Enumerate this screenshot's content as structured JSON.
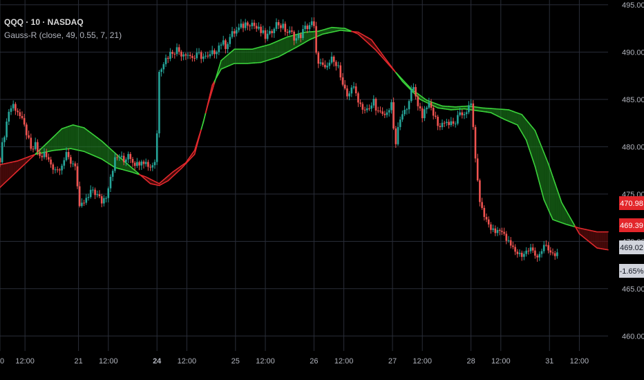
{
  "header": {
    "symbol": "QQQ · 10 · NASDAQ",
    "indicator": "Gauss-R (close, 49, 0.55, 7, 21)"
  },
  "colors": {
    "background": "#000000",
    "grid": "#2a2e39",
    "up_candle": "#26a69a",
    "down_candle": "#ef5350",
    "bull_band": "#1f8f1f",
    "bull_line": "#3ad13a",
    "bear_band": "#7a1010",
    "bear_line": "#e0282c",
    "tag_red": "#e3262b",
    "tag_gray": "#d1d4dc"
  },
  "price_tags": [
    {
      "label": "470.98",
      "value": 470.98,
      "color": "#e3262b",
      "text": "light"
    },
    {
      "label": "469.39",
      "value": 469.39,
      "color": "#e3262b",
      "text": "light"
    },
    {
      "label": "469.02",
      "value": 469.02,
      "color": "#d1d4dc",
      "text": "dark"
    },
    {
      "label": "-1.65%",
      "value": 467.2,
      "color": "#d1d4dc",
      "text": "dark"
    }
  ],
  "chart_data": {
    "type": "candlestick",
    "ylim": [
      459,
      495.5
    ],
    "y_ticks": [
      {
        "label": "495.00",
        "value": 495
      },
      {
        "label": "490.00",
        "value": 490
      },
      {
        "label": "485.00",
        "value": 485
      },
      {
        "label": "480.00",
        "value": 480
      },
      {
        "label": "475.00",
        "value": 475
      },
      {
        "label": "470.00",
        "value": 470
      },
      {
        "label": "465.00",
        "value": 465
      },
      {
        "label": "460.00",
        "value": 460
      }
    ],
    "x_ticks": [
      {
        "label": "20",
        "bar": 0,
        "bold": false
      },
      {
        "label": "12:00",
        "bar": 11.3,
        "bold": false
      },
      {
        "label": "21",
        "bar": 35.5,
        "bold": false
      },
      {
        "label": "12:00",
        "bar": 49,
        "bold": false
      },
      {
        "label": "24",
        "bar": 71,
        "bold": true
      },
      {
        "label": "12:00",
        "bar": 84.5,
        "bold": false
      },
      {
        "label": "25",
        "bar": 106.5,
        "bold": false
      },
      {
        "label": "12:00",
        "bar": 120,
        "bold": false
      },
      {
        "label": "26",
        "bar": 142,
        "bold": false
      },
      {
        "label": "12:00",
        "bar": 155.5,
        "bold": false
      },
      {
        "label": "27",
        "bar": 177.5,
        "bold": false
      },
      {
        "label": "12:00",
        "bar": 191,
        "bold": false
      },
      {
        "label": "28",
        "bar": 213,
        "bold": false
      },
      {
        "label": "12:00",
        "bar": 226.5,
        "bold": false
      },
      {
        "label": "31",
        "bar": 248.5,
        "bold": false
      },
      {
        "label": "12:00",
        "bar": 262,
        "bold": false
      }
    ],
    "x_range": [
      0,
      275
    ],
    "series": [
      {
        "name": "",
        "type": "candles",
        "anchors": [
          [
            0,
            478.8
          ],
          [
            2,
            481.4
          ],
          [
            4,
            483.8
          ],
          [
            6,
            484.4
          ],
          [
            8,
            483.8
          ],
          [
            10,
            482.6
          ],
          [
            12,
            481.5
          ],
          [
            14,
            479.5
          ],
          [
            16,
            480.1
          ],
          [
            18,
            478.9
          ],
          [
            20,
            479.2
          ],
          [
            22,
            478.5
          ],
          [
            24,
            477.9
          ],
          [
            26,
            477.6
          ],
          [
            28,
            478.3
          ],
          [
            30,
            479.0
          ],
          [
            32,
            478.4
          ],
          [
            34,
            478.2
          ],
          [
            36,
            473.3
          ],
          [
            38,
            474.1
          ],
          [
            40,
            474.6
          ],
          [
            42,
            475.5
          ],
          [
            44,
            474.8
          ],
          [
            46,
            474.2
          ],
          [
            48,
            474.9
          ],
          [
            50,
            477.0
          ],
          [
            52,
            478.6
          ],
          [
            54,
            479.0
          ],
          [
            56,
            478.4
          ],
          [
            58,
            479.4
          ],
          [
            60,
            478.6
          ],
          [
            62,
            478.1
          ],
          [
            64,
            478.8
          ],
          [
            66,
            478.3
          ],
          [
            68,
            477.9
          ],
          [
            70,
            478.5
          ],
          [
            71,
            481.4
          ],
          [
            72,
            488.2
          ],
          [
            74,
            489.0
          ],
          [
            76,
            489.6
          ],
          [
            78,
            490.1
          ],
          [
            80,
            490.3
          ],
          [
            82,
            489.9
          ],
          [
            84,
            490.0
          ],
          [
            86,
            489.6
          ],
          [
            88,
            489.4
          ],
          [
            90,
            489.7
          ],
          [
            92,
            489.5
          ],
          [
            94,
            489.3
          ],
          [
            96,
            489.8
          ],
          [
            98,
            490.4
          ],
          [
            100,
            491.0
          ],
          [
            102,
            490.7
          ],
          [
            104,
            491.6
          ],
          [
            106,
            492.1
          ],
          [
            108,
            492.4
          ],
          [
            110,
            492.8
          ],
          [
            112,
            493.2
          ],
          [
            114,
            493.1
          ],
          [
            116,
            492.5
          ],
          [
            118,
            492.1
          ],
          [
            120,
            491.6
          ],
          [
            122,
            491.8
          ],
          [
            124,
            492.9
          ],
          [
            126,
            493.0
          ],
          [
            128,
            492.6
          ],
          [
            130,
            492.1
          ],
          [
            132,
            491.9
          ],
          [
            134,
            491.4
          ],
          [
            136,
            491.8
          ],
          [
            138,
            492.5
          ],
          [
            140,
            492.9
          ],
          [
            141,
            493.0
          ],
          [
            142,
            492.5
          ],
          [
            143,
            489.6
          ],
          [
            145,
            488.7
          ],
          [
            147,
            488.0
          ],
          [
            149,
            488.9
          ],
          [
            151,
            489.4
          ],
          [
            153,
            488.4
          ],
          [
            155,
            486.2
          ],
          [
            157,
            485.3
          ],
          [
            159,
            486.4
          ],
          [
            161,
            485.6
          ],
          [
            163,
            484.5
          ],
          [
            165,
            483.9
          ],
          [
            167,
            483.8
          ],
          [
            169,
            484.9
          ],
          [
            171,
            483.6
          ],
          [
            173,
            483.2
          ],
          [
            175,
            483.5
          ],
          [
            177,
            484.8
          ],
          [
            178,
            481.5
          ],
          [
            179,
            480.4
          ],
          [
            181,
            482.9
          ],
          [
            183,
            483.6
          ],
          [
            185,
            485.2
          ],
          [
            187,
            486.1
          ],
          [
            189,
            484.6
          ],
          [
            191,
            483.3
          ],
          [
            193,
            484.5
          ],
          [
            195,
            484.0
          ],
          [
            197,
            482.9
          ],
          [
            199,
            482.1
          ],
          [
            201,
            482.8
          ],
          [
            203,
            482.4
          ],
          [
            205,
            482.3
          ],
          [
            207,
            483.0
          ],
          [
            209,
            483.4
          ],
          [
            211,
            483.9
          ],
          [
            213,
            484.3
          ],
          [
            214,
            482.0
          ],
          [
            215,
            479.0
          ],
          [
            216,
            476.0
          ],
          [
            217,
            474.5
          ],
          [
            218,
            473.2
          ],
          [
            220,
            472.2
          ],
          [
            222,
            471.4
          ],
          [
            224,
            470.9
          ],
          [
            226,
            471.5
          ],
          [
            228,
            470.5
          ],
          [
            230,
            469.8
          ],
          [
            232,
            469.2
          ],
          [
            234,
            468.8
          ],
          [
            236,
            468.6
          ],
          [
            238,
            468.9
          ],
          [
            240,
            469.2
          ],
          [
            242,
            468.5
          ],
          [
            244,
            468.8
          ],
          [
            246,
            469.4
          ],
          [
            248,
            469.0
          ],
          [
            250,
            468.5
          ],
          [
            252,
            468.7
          ]
        ]
      },
      {
        "name": "",
        "type": "gauss_line_fast",
        "anchors": [
          [
            0,
            475.7
          ],
          [
            10,
            477.9
          ],
          [
            20,
            480.1
          ],
          [
            28,
            481.9
          ],
          [
            33,
            482.3
          ],
          [
            38,
            482.0
          ],
          [
            46,
            480.6
          ],
          [
            55,
            478.7
          ],
          [
            62,
            477.3
          ],
          [
            68,
            476.1
          ],
          [
            72,
            475.9
          ],
          [
            76,
            476.4
          ],
          [
            82,
            477.7
          ],
          [
            88,
            479.2
          ],
          [
            94,
            484.4
          ],
          [
            100,
            489.1
          ],
          [
            106,
            490.3
          ],
          [
            114,
            490.3
          ],
          [
            122,
            490.8
          ],
          [
            130,
            491.6
          ],
          [
            138,
            492.1
          ],
          [
            144,
            492.2
          ],
          [
            150,
            492.6
          ],
          [
            156,
            492.5
          ],
          [
            162,
            491.9
          ],
          [
            170,
            490.2
          ],
          [
            178,
            488.1
          ],
          [
            186,
            486.1
          ],
          [
            193,
            484.9
          ],
          [
            200,
            484.3
          ],
          [
            206,
            484.2
          ],
          [
            212,
            484.3
          ],
          [
            218,
            484.1
          ],
          [
            224,
            484.0
          ],
          [
            230,
            483.9
          ],
          [
            236,
            483.4
          ],
          [
            242,
            481.7
          ],
          [
            248,
            478.2
          ],
          [
            254,
            474.1
          ],
          [
            262,
            470.8
          ],
          [
            270,
            469.3
          ],
          [
            275,
            469.1
          ]
        ]
      },
      {
        "name": "",
        "type": "gauss_line_slow",
        "anchors": [
          [
            0,
            478.1
          ],
          [
            8,
            478.5
          ],
          [
            16,
            479.2
          ],
          [
            24,
            479.6
          ],
          [
            32,
            479.8
          ],
          [
            38,
            479.5
          ],
          [
            46,
            478.7
          ],
          [
            52,
            477.8
          ],
          [
            60,
            477.3
          ],
          [
            66,
            476.8
          ],
          [
            72,
            476.1
          ],
          [
            78,
            477.3
          ],
          [
            84,
            478.3
          ],
          [
            88,
            479.6
          ],
          [
            92,
            482.6
          ],
          [
            96,
            486.5
          ],
          [
            100,
            488.2
          ],
          [
            106,
            488.8
          ],
          [
            112,
            488.8
          ],
          [
            118,
            488.9
          ],
          [
            126,
            489.5
          ],
          [
            134,
            490.5
          ],
          [
            140,
            491.3
          ],
          [
            146,
            491.9
          ],
          [
            154,
            492.3
          ],
          [
            162,
            492.1
          ],
          [
            168,
            491.3
          ],
          [
            174,
            489.4
          ],
          [
            182,
            486.9
          ],
          [
            190,
            485.0
          ],
          [
            198,
            484.1
          ],
          [
            204,
            483.9
          ],
          [
            210,
            484.0
          ],
          [
            216,
            483.8
          ],
          [
            222,
            483.6
          ],
          [
            228,
            482.9
          ],
          [
            234,
            482.3
          ],
          [
            238,
            480.7
          ],
          [
            242,
            477.9
          ],
          [
            246,
            474.4
          ],
          [
            250,
            472.3
          ],
          [
            256,
            471.8
          ],
          [
            262,
            471.4
          ],
          [
            270,
            471.0
          ],
          [
            275,
            471.0
          ]
        ]
      }
    ]
  }
}
